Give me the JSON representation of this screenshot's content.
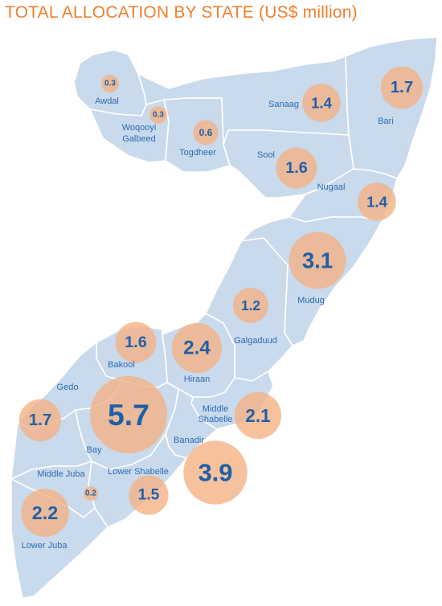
{
  "title": "TOTAL ALLOCATION BY STATE (US$ million)",
  "colors": {
    "title": "#f07f2e",
    "land": "#c9daec",
    "border": "#ffffff",
    "bubble": "#f4b183",
    "value_text": "#1f5fa8",
    "label_text": "#2d6bb3"
  },
  "regions": [
    {
      "name": "Awdal",
      "value": 0.3
    },
    {
      "name": "Woqooyi Galbeed",
      "value": 0.3
    },
    {
      "name": "Togdheer",
      "value": 0.6
    },
    {
      "name": "Sanaag",
      "value": 1.4
    },
    {
      "name": "Bari",
      "value": 1.7
    },
    {
      "name": "Sool",
      "value": 1.6
    },
    {
      "name": "Nugaal",
      "value": 1.4
    },
    {
      "name": "Mudug",
      "value": 3.1
    },
    {
      "name": "Galgaduud",
      "value": 1.2
    },
    {
      "name": "Hiraan",
      "value": 2.4
    },
    {
      "name": "Bakool",
      "value": 1.6
    },
    {
      "name": "Gedo",
      "value": 1.7
    },
    {
      "name": "Bay",
      "value": 5.7
    },
    {
      "name": "Middle Shabelle",
      "value": 2.1
    },
    {
      "name": "Banadir",
      "value": 3.9
    },
    {
      "name": "Lower Shabelle",
      "value": 1.5
    },
    {
      "name": "Middle Juba",
      "value": 0.2
    },
    {
      "name": "Lower Juba",
      "value": 2.2
    }
  ]
}
